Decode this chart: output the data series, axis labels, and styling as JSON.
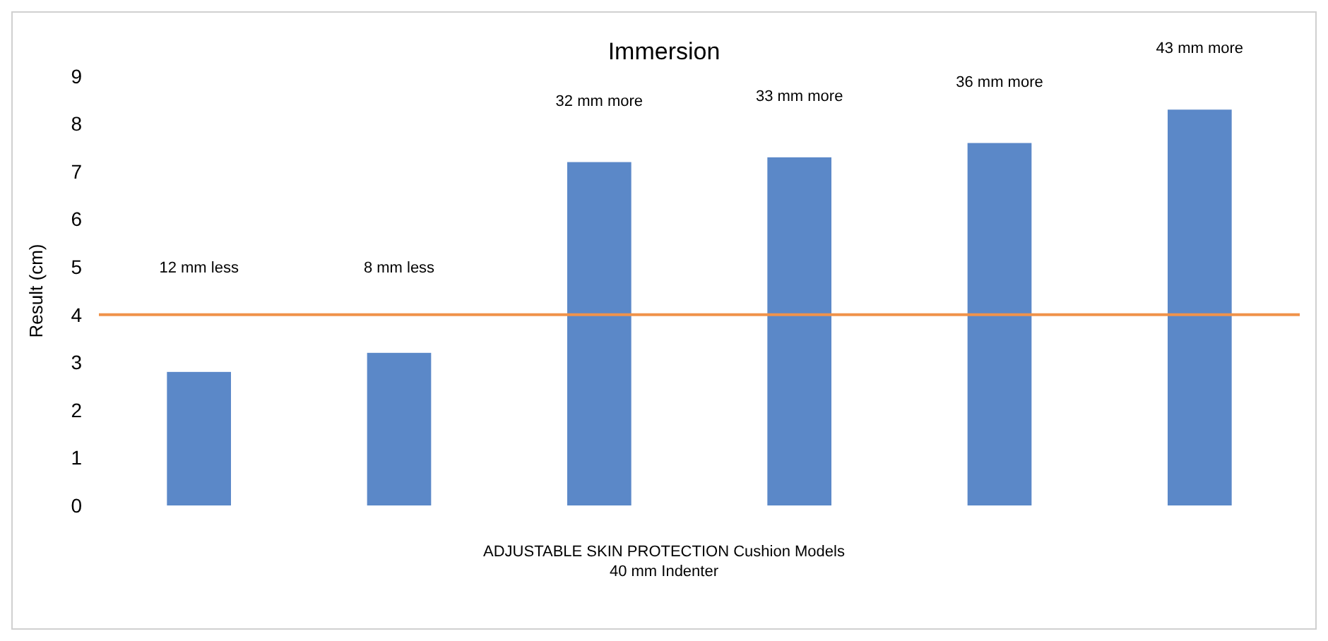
{
  "chart_data": {
    "type": "bar",
    "title": "Immersion",
    "xlabel": "ADJUSTABLE SKIN PROTECTION Cushion Models\n40 mm Indenter",
    "ylabel": "Result (cm)",
    "categories": [
      null,
      null,
      null,
      null,
      null,
      null
    ],
    "values": [
      2.8,
      3.2,
      7.2,
      7.3,
      7.6,
      8.3
    ],
    "color": "#5b88c8",
    "ylim": [
      0,
      9
    ],
    "yticks": [
      0,
      1,
      2,
      3,
      4,
      5,
      6,
      7,
      8,
      9
    ],
    "grid": false,
    "ref_lines": [
      {
        "axis": "y",
        "value": 4,
        "color": "#f0924a"
      }
    ],
    "annotations": [
      "12 mm less",
      "8 mm less",
      "32  mm more",
      "33  mm more",
      "36  mm more",
      "43  mm more"
    ]
  }
}
